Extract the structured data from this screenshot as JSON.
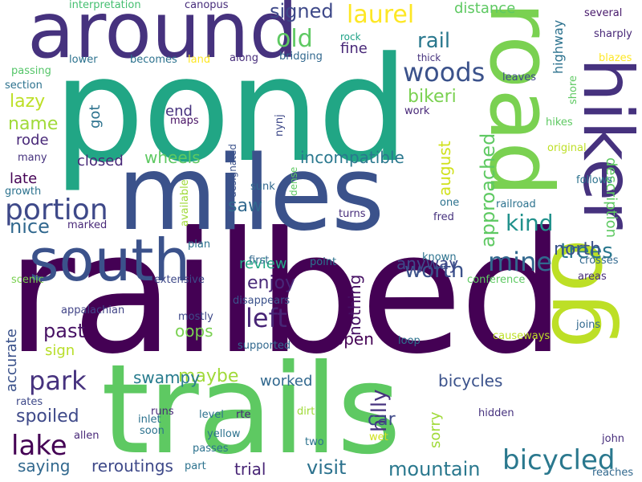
{
  "words": [
    {
      "text": "railbed",
      "color": "#440154"
    },
    {
      "text": "pond",
      "color": "#21a685"
    },
    {
      "text": "miles",
      "color": "#3b528b"
    },
    {
      "text": "trails",
      "color": "#5ec962"
    },
    {
      "text": "around",
      "color": "#46327e"
    },
    {
      "text": "road",
      "color": "#7ad151"
    },
    {
      "text": "hiker",
      "color": "#46327e"
    },
    {
      "text": "go",
      "color": "#bddf26"
    },
    {
      "text": "south",
      "color": "#3b528b"
    },
    {
      "text": "bicycled",
      "color": "#2a788e"
    },
    {
      "text": "lake",
      "color": "#440154"
    },
    {
      "text": "portion",
      "color": "#3e4989"
    },
    {
      "text": "park",
      "color": "#46327e"
    },
    {
      "text": "woods",
      "color": "#3b528b"
    },
    {
      "text": "mine",
      "color": "#31688e"
    },
    {
      "text": "left",
      "color": "#482576"
    },
    {
      "text": "laurel",
      "color": "#fde725"
    },
    {
      "text": "old",
      "color": "#5ec962"
    },
    {
      "text": "rail",
      "color": "#2a788e"
    },
    {
      "text": "kind",
      "color": "#21918c"
    },
    {
      "text": "nice",
      "color": "#31688e"
    },
    {
      "text": "worth",
      "color": "#3b528b"
    },
    {
      "text": "trees",
      "color": "#2a788e"
    },
    {
      "text": "approached",
      "color": "#5ec962"
    },
    {
      "text": "hilly",
      "color": "#46327e"
    },
    {
      "text": "mountain",
      "color": "#2a788e"
    },
    {
      "text": "signed",
      "color": "#3e4989"
    },
    {
      "text": "enjoy",
      "color": "#482878"
    },
    {
      "text": "past",
      "color": "#471164"
    },
    {
      "text": "saw",
      "color": "#31688e"
    },
    {
      "text": "name",
      "color": "#a0da39"
    },
    {
      "text": "lazy",
      "color": "#bddf26"
    },
    {
      "text": "spoiled",
      "color": "#3e4989"
    },
    {
      "text": "visit",
      "color": "#2c728e"
    },
    {
      "text": "maybe",
      "color": "#a0da39"
    },
    {
      "text": "north",
      "color": "#3b528b"
    },
    {
      "text": "car",
      "color": "#3e4989"
    },
    {
      "text": "bikeri",
      "color": "#7ad151"
    },
    {
      "text": "august",
      "color": "#d0e11c"
    },
    {
      "text": "nothing",
      "color": "#471164"
    },
    {
      "text": "reroutings",
      "color": "#3e4989"
    },
    {
      "text": "saying",
      "color": "#31688e"
    },
    {
      "text": "trial",
      "color": "#482576"
    },
    {
      "text": "description",
      "color": "#5ec962"
    },
    {
      "text": "swampy",
      "color": "#287c8e"
    },
    {
      "text": "wheels",
      "color": "#5ec962"
    },
    {
      "text": "incompatible",
      "color": "#2a788e"
    },
    {
      "text": "bicycles",
      "color": "#3b528b"
    },
    {
      "text": "anyway",
      "color": "#3e4989"
    },
    {
      "text": "review",
      "color": "#22a884"
    },
    {
      "text": "oops",
      "color": "#7ad151"
    },
    {
      "text": "open",
      "color": "#440154"
    },
    {
      "text": "worked",
      "color": "#31688e"
    },
    {
      "text": "end",
      "color": "#46327e"
    },
    {
      "text": "closed",
      "color": "#482878"
    },
    {
      "text": "rode",
      "color": "#482878"
    },
    {
      "text": "late",
      "color": "#440154"
    },
    {
      "text": "accurate",
      "color": "#3b528b"
    },
    {
      "text": "got",
      "color": "#2c728e"
    },
    {
      "text": "sign",
      "color": "#b8de29"
    },
    {
      "text": "fine",
      "color": "#482878"
    },
    {
      "text": "distance",
      "color": "#5ec962"
    },
    {
      "text": "highway",
      "color": "#2c728e"
    },
    {
      "text": "sorry",
      "color": "#a0da39"
    },
    {
      "text": "interpretation",
      "color": "#44bf70"
    },
    {
      "text": "canopus",
      "color": "#472d7b"
    },
    {
      "text": "several",
      "color": "#481a6c"
    },
    {
      "text": "sharply",
      "color": "#482878"
    },
    {
      "text": "rock",
      "color": "#1fa287"
    },
    {
      "text": "thick",
      "color": "#46327e"
    },
    {
      "text": "blazes",
      "color": "#fde725"
    },
    {
      "text": "shore",
      "color": "#5ec962"
    },
    {
      "text": "leaves",
      "color": "#3e4989"
    },
    {
      "text": "passing",
      "color": "#54c568"
    },
    {
      "text": "lower",
      "color": "#2c728e"
    },
    {
      "text": "becomes",
      "color": "#2c728e"
    },
    {
      "text": "land",
      "color": "#fde725"
    },
    {
      "text": "along",
      "color": "#472d7b"
    },
    {
      "text": "bridging",
      "color": "#31688e"
    },
    {
      "text": "section",
      "color": "#2c728e"
    },
    {
      "text": "work",
      "color": "#482878"
    },
    {
      "text": "maps",
      "color": "#471164"
    },
    {
      "text": "nynj",
      "color": "#3e4989"
    },
    {
      "text": "hikes",
      "color": "#5ec962"
    },
    {
      "text": "original",
      "color": "#bddf26"
    },
    {
      "text": "designated",
      "color": "#3b528b"
    },
    {
      "text": "growth",
      "color": "#2c728e"
    },
    {
      "text": "many",
      "color": "#46327e"
    },
    {
      "text": "available",
      "color": "#a0da39"
    },
    {
      "text": "dense",
      "color": "#5ec962"
    },
    {
      "text": "sunk",
      "color": "#31688e"
    },
    {
      "text": "follows",
      "color": "#2c728e"
    },
    {
      "text": "one",
      "color": "#2c728e"
    },
    {
      "text": "fred",
      "color": "#46327e"
    },
    {
      "text": "railroad",
      "color": "#2c728e"
    },
    {
      "text": "turns",
      "color": "#472d7b"
    },
    {
      "text": "marked",
      "color": "#482878"
    },
    {
      "text": "plan",
      "color": "#2c728e"
    },
    {
      "text": "point",
      "color": "#2c728e"
    },
    {
      "text": "known",
      "color": "#2c728e"
    },
    {
      "text": "crosses",
      "color": "#31688e"
    },
    {
      "text": "first",
      "color": "#31688e"
    },
    {
      "text": "conference",
      "color": "#5ec962"
    },
    {
      "text": "scenic",
      "color": "#7ad151"
    },
    {
      "text": "extensive",
      "color": "#3e4989"
    },
    {
      "text": "areas",
      "color": "#472d7b"
    },
    {
      "text": "appalachian",
      "color": "#414487"
    },
    {
      "text": "disappears",
      "color": "#3b528b"
    },
    {
      "text": "mostly",
      "color": "#3e4989"
    },
    {
      "text": "loop",
      "color": "#2c728e"
    },
    {
      "text": "causeways",
      "color": "#bddf26"
    },
    {
      "text": "joins",
      "color": "#31688e"
    },
    {
      "text": "supported",
      "color": "#31688e"
    },
    {
      "text": "rates",
      "color": "#3e4989"
    },
    {
      "text": "runs",
      "color": "#482878"
    },
    {
      "text": "level",
      "color": "#2c728e"
    },
    {
      "text": "rte",
      "color": "#482878"
    },
    {
      "text": "dirt",
      "color": "#a0da39"
    },
    {
      "text": "hidden",
      "color": "#46327e"
    },
    {
      "text": "inlet",
      "color": "#2c728e"
    },
    {
      "text": "soon",
      "color": "#2c728e"
    },
    {
      "text": "allen",
      "color": "#482878"
    },
    {
      "text": "yellow",
      "color": "#2c728e"
    },
    {
      "text": "wet",
      "color": "#d0e11c"
    },
    {
      "text": "two",
      "color": "#2c728e"
    },
    {
      "text": "passes",
      "color": "#2c728e"
    },
    {
      "text": "part",
      "color": "#2c728e"
    },
    {
      "text": "john",
      "color": "#472d7b"
    },
    {
      "text": "reaches",
      "color": "#31688e"
    }
  ]
}
